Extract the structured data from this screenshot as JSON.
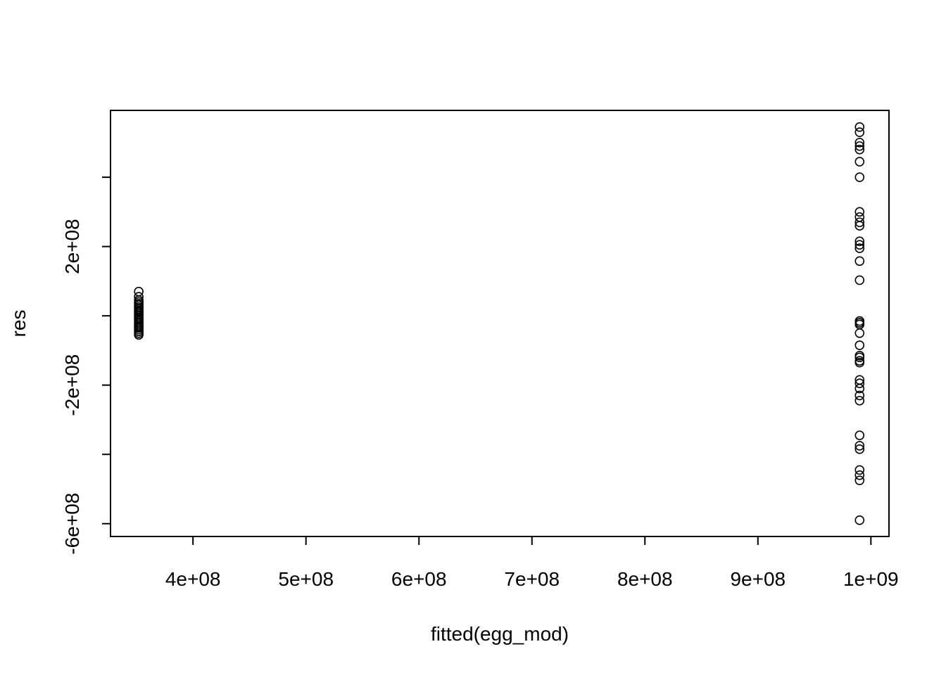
{
  "chart_data": {
    "type": "scatter",
    "title": "",
    "xlabel": "fitted(egg_mod)",
    "ylabel": "res",
    "xlim": [
      327000000,
      1016000000
    ],
    "ylim": [
      -637000000,
      593000000
    ],
    "grid": false,
    "legend": "none",
    "x_ticks": [
      {
        "value": 400000000,
        "label": "4e+08"
      },
      {
        "value": 500000000,
        "label": "5e+08"
      },
      {
        "value": 600000000,
        "label": "6e+08"
      },
      {
        "value": 700000000,
        "label": "7e+08"
      },
      {
        "value": 800000000,
        "label": "8e+08"
      },
      {
        "value": 900000000,
        "label": "9e+08"
      },
      {
        "value": 1000000000,
        "label": "1e+09"
      }
    ],
    "y_ticks": [
      {
        "value": -600000000,
        "label": "-6e+08"
      },
      {
        "value": -400000000,
        "label": ""
      },
      {
        "value": -200000000,
        "label": "-2e+08"
      },
      {
        "value": 0,
        "label": ""
      },
      {
        "value": 200000000,
        "label": "2e+08"
      },
      {
        "value": 400000000,
        "label": ""
      }
    ],
    "series": [
      {
        "x": [
          352000000,
          352000000,
          352000000,
          352000000,
          352000000,
          352000000,
          352000000,
          352000000,
          352000000,
          352000000,
          352000000,
          352000000,
          352000000,
          352000000,
          352000000,
          352000000,
          352000000,
          352000000,
          352000000,
          352000000,
          352000000,
          352000000,
          352000000,
          352000000,
          352000000,
          352000000,
          990000000,
          990000000,
          990000000,
          990000000,
          990000000,
          990000000,
          990000000,
          990000000,
          990000000,
          990000000,
          990000000,
          990000000,
          990000000,
          990000000,
          990000000,
          990000000,
          990000000,
          990000000,
          990000000,
          990000000,
          990000000,
          990000000,
          990000000,
          990000000,
          990000000,
          990000000,
          990000000,
          990000000,
          990000000,
          990000000,
          990000000,
          990000000,
          990000000,
          990000000,
          990000000,
          990000000,
          990000000
        ],
        "y": [
          70000000,
          55000000,
          45000000,
          40000000,
          35000000,
          30000000,
          25000000,
          20000000,
          15000000,
          10000000,
          5000000,
          0,
          -5000000,
          -10000000,
          -15000000,
          -20000000,
          -25000000,
          -30000000,
          -35000000,
          -40000000,
          -45000000,
          -50000000,
          -55000000,
          -33000000,
          12000000,
          -8000000,
          545000000,
          530000000,
          500000000,
          490000000,
          480000000,
          445000000,
          400000000,
          300000000,
          285000000,
          260000000,
          215000000,
          205000000,
          158000000,
          103000000,
          -15000000,
          -25000000,
          -50000000,
          -85000000,
          -115000000,
          -130000000,
          -135000000,
          -185000000,
          -195000000,
          -210000000,
          -230000000,
          -245000000,
          -345000000,
          -375000000,
          -385000000,
          -445000000,
          -460000000,
          -475000000,
          -590000000,
          -20000000,
          -120000000,
          270000000,
          195000000
        ]
      }
    ]
  }
}
